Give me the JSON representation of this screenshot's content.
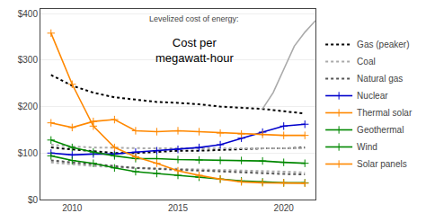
{
  "chart_data": {
    "type": "line",
    "title": "Cost per\nmegawatt-hour",
    "subtitle": "Levelized cost of energy:",
    "xlim": [
      2008.5,
      2021.5
    ],
    "xticks": [
      2010,
      2015,
      2020
    ],
    "ylim": [
      0,
      410
    ],
    "yticks": [
      {
        "value": 0,
        "label": "$0"
      },
      {
        "value": 100,
        "label": "$100"
      },
      {
        "value": 200,
        "label": "$200"
      },
      {
        "value": 300,
        "label": "$300"
      },
      {
        "value": 400,
        "label": "$400"
      }
    ],
    "grid": "y",
    "legend": "right",
    "series": [
      {
        "name": "Gas (peaker)",
        "color": "#000000",
        "line_style": "dotted",
        "x": [
          2009,
          2010,
          2011,
          2012,
          2013,
          2014,
          2015,
          2016,
          2017,
          2018,
          2019,
          2020,
          2021
        ],
        "values": [
          268,
          245,
          230,
          220,
          215,
          210,
          208,
          205,
          200,
          198,
          195,
          190,
          185
        ]
      },
      {
        "name": "Gas (peaker)",
        "color": "#000000",
        "line_style": "dotted",
        "x": [
          2009,
          2010,
          2011,
          2012,
          2013,
          2014,
          2015,
          2016,
          2017,
          2018,
          2019,
          2020,
          2021
        ],
        "values": [
          112,
          108,
          105,
          100,
          100,
          102,
          105,
          105,
          107,
          108,
          110,
          110,
          112
        ]
      },
      {
        "name": "Coal",
        "color": "#aaaaaa",
        "line_style": "dotted",
        "x": [
          2009,
          2010,
          2011,
          2012,
          2013,
          2014,
          2015,
          2016,
          2017,
          2018,
          2019,
          2020,
          2021
        ],
        "values": [
          118,
          114,
          112,
          111,
          110,
          110,
          110,
          110,
          110,
          110,
          110,
          110,
          110
        ]
      },
      {
        "name": "Coal",
        "color": "#aaaaaa",
        "line_style": "dotted",
        "x": [
          2009,
          2010,
          2011,
          2012,
          2013,
          2014,
          2015,
          2016,
          2017,
          2018,
          2019,
          2020,
          2021
        ],
        "values": [
          80,
          76,
          72,
          70,
          68,
          67,
          66,
          65,
          64,
          63,
          62,
          60,
          58
        ]
      },
      {
        "name": "Natural gas",
        "color": "#555555",
        "line_style": "dotted",
        "x": [
          2009,
          2010,
          2011,
          2012,
          2013,
          2014,
          2015,
          2016,
          2017,
          2018,
          2019,
          2020,
          2021
        ],
        "values": [
          84,
          80,
          76,
          72,
          68,
          66,
          64,
          62,
          60,
          58,
          57,
          55,
          54
        ]
      },
      {
        "name": "Nuclear",
        "color": "#0000cc",
        "line_style": "solid",
        "marker": "plus",
        "x": [
          2009,
          2010,
          2011,
          2012,
          2013,
          2014,
          2015,
          2016,
          2017,
          2018,
          2019,
          2020,
          2021
        ],
        "values": [
          100,
          96,
          98,
          98,
          102,
          105,
          108,
          112,
          118,
          132,
          145,
          158,
          162
        ]
      },
      {
        "name": "Thermal solar",
        "color": "#ff8800",
        "line_style": "solid",
        "marker": "plus",
        "x": [
          2009,
          2010,
          2011,
          2012,
          2013,
          2014,
          2015,
          2016,
          2017,
          2018,
          2019,
          2020,
          2021
        ],
        "values": [
          165,
          155,
          168,
          172,
          148,
          146,
          148,
          146,
          143,
          141,
          140,
          138,
          138
        ]
      },
      {
        "name": "Geothermal",
        "color": "#008800",
        "line_style": "solid",
        "marker": "plus",
        "x": [
          2009,
          2010,
          2011,
          2012,
          2013,
          2014,
          2015,
          2016,
          2017,
          2018,
          2019,
          2020,
          2021
        ],
        "values": [
          128,
          112,
          102,
          94,
          88,
          88,
          86,
          85,
          84,
          84,
          83,
          80,
          78
        ]
      },
      {
        "name": "Wind",
        "color": "#008800",
        "line_style": "solid",
        "marker": "plus",
        "x": [
          2009,
          2010,
          2011,
          2012,
          2013,
          2014,
          2015,
          2016,
          2017,
          2018,
          2019,
          2020,
          2021
        ],
        "values": [
          94,
          84,
          78,
          68,
          60,
          56,
          52,
          48,
          44,
          40,
          38,
          36,
          36
        ]
      },
      {
        "name": "Solar panels",
        "color": "#ff8800",
        "line_style": "solid",
        "marker": "plus",
        "x": [
          2009,
          2010,
          2011,
          2012,
          2013,
          2014,
          2015,
          2016,
          2017,
          2018,
          2019,
          2020,
          2021
        ],
        "values": [
          358,
          248,
          158,
          112,
          92,
          78,
          62,
          52,
          44,
          38,
          36,
          36,
          35
        ]
      },
      {
        "name": "Gas (peaker)",
        "color": "#aaaaaa",
        "line_style": "solid",
        "x": [
          2019,
          2019.5,
          2020,
          2020.5,
          2021,
          2021.5
        ],
        "values": [
          195,
          230,
          280,
          330,
          360,
          385
        ]
      }
    ]
  }
}
